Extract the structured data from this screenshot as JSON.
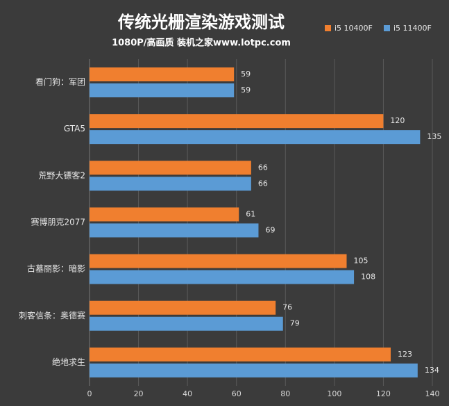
{
  "chart_data": {
    "type": "barh",
    "title": "传统光栅渲染游戏测试",
    "subtitle": "1080P/高画质 装机之家www.lotpc.com",
    "categories": [
      "看门狗：军团",
      "GTA5",
      "荒野大镖客2",
      "赛博朋克2077",
      "古墓丽影：暗影",
      "刺客信条：奥德赛",
      "绝地求生"
    ],
    "series": [
      {
        "name": "i5 10400F",
        "color": "#f07f2f",
        "values": [
          59,
          120,
          66,
          61,
          105,
          76,
          123
        ]
      },
      {
        "name": "i5 11400F",
        "color": "#5b9bd5",
        "values": [
          59,
          135,
          66,
          69,
          108,
          79,
          134
        ]
      }
    ],
    "xlim": [
      0,
      140
    ],
    "xticks": [
      0,
      20,
      40,
      60,
      80,
      100,
      120,
      140
    ],
    "grid": true,
    "legend": "top-right"
  }
}
